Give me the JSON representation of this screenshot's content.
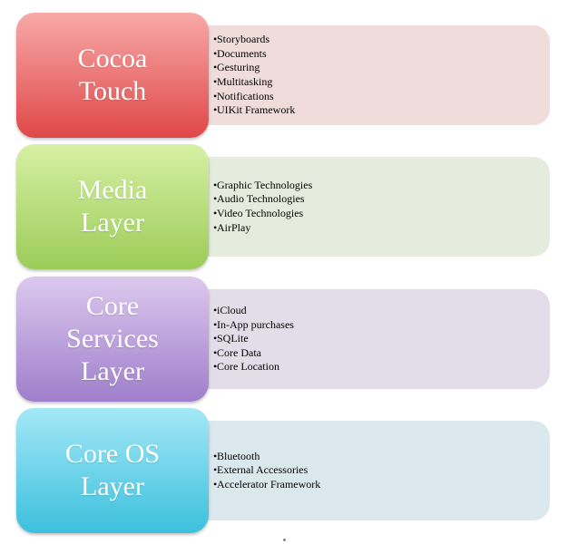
{
  "layers": [
    {
      "title": "Cocoa\nTouch",
      "items": [
        "Storyboards",
        "Documents",
        "Gesturing",
        "Multitasking",
        "Notifications",
        "UIKit Framework"
      ],
      "block_color_light": "#f8a9a9",
      "block_color_dark": "#e04848",
      "box_color": "#f1dcdc"
    },
    {
      "title": "Media\nLayer",
      "items": [
        "Graphic Technologies",
        "Audio Technologies",
        "Video Technologies",
        "AirPlay"
      ],
      "block_color_light": "#d6f0a4",
      "block_color_dark": "#9ccc58",
      "box_color": "#e5ecdd"
    },
    {
      "title": "Core\nServices\nLayer",
      "items": [
        "iCloud",
        "In-App purchases",
        "SQLite",
        "Core Data",
        "Core Location"
      ],
      "block_color_light": "#dcc8ee",
      "block_color_dark": "#9f7fcb",
      "box_color": "#e3dde9"
    },
    {
      "title": "Core OS\nLayer",
      "items": [
        "Bluetooth",
        "External Accessories",
        "Accelerator Framework"
      ],
      "block_color_light": "#a4e8f6",
      "block_color_dark": "#3cc0de",
      "box_color": "#dbe9ef"
    }
  ],
  "bullet_glyph": "•"
}
